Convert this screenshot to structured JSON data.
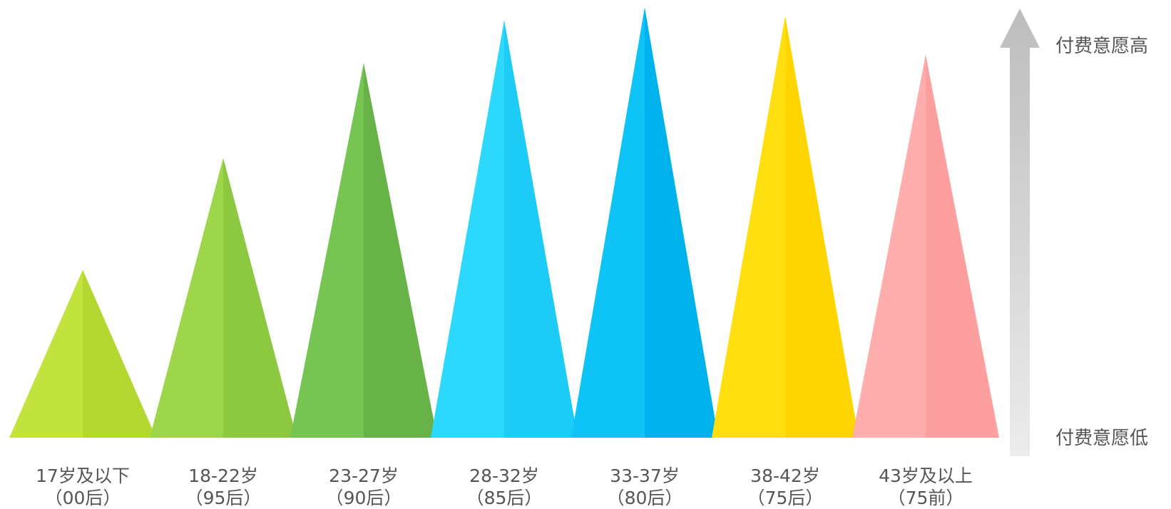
{
  "chart_data": {
    "type": "bar",
    "categories": [
      {
        "line1": "17岁及以下",
        "line2": "（00后）"
      },
      {
        "line1": "18-22岁",
        "line2": "（95后）"
      },
      {
        "line1": "23-27岁",
        "line2": "（90后）"
      },
      {
        "line1": "28-32岁",
        "line2": "（85后）"
      },
      {
        "line1": "33-37岁",
        "line2": "（80后）"
      },
      {
        "line1": "38-42岁",
        "line2": "（75后）"
      },
      {
        "line1": "43岁及以上",
        "line2": "（75前）"
      }
    ],
    "values": [
      39,
      65,
      87,
      97,
      100,
      98,
      89
    ],
    "ylim": [
      0,
      100
    ],
    "scale_labels": {
      "high": "付费意愿高",
      "low": "付费意愿低"
    },
    "colors": [
      {
        "left": "#c2e23e",
        "right": "#b4d732"
      },
      {
        "left": "#9ed64b",
        "right": "#8cc940"
      },
      {
        "left": "#76c451",
        "right": "#67b347"
      },
      {
        "left": "#2dd8fd",
        "right": "#1ccbf6"
      },
      {
        "left": "#0ec3f5",
        "right": "#00b2ec"
      },
      {
        "left": "#ffdf10",
        "right": "#ffd500"
      },
      {
        "left": "#ffadad",
        "right": "#fd9f9e"
      }
    ],
    "arrow_color": "#d2d2d2",
    "grid": false,
    "legend": "none"
  }
}
